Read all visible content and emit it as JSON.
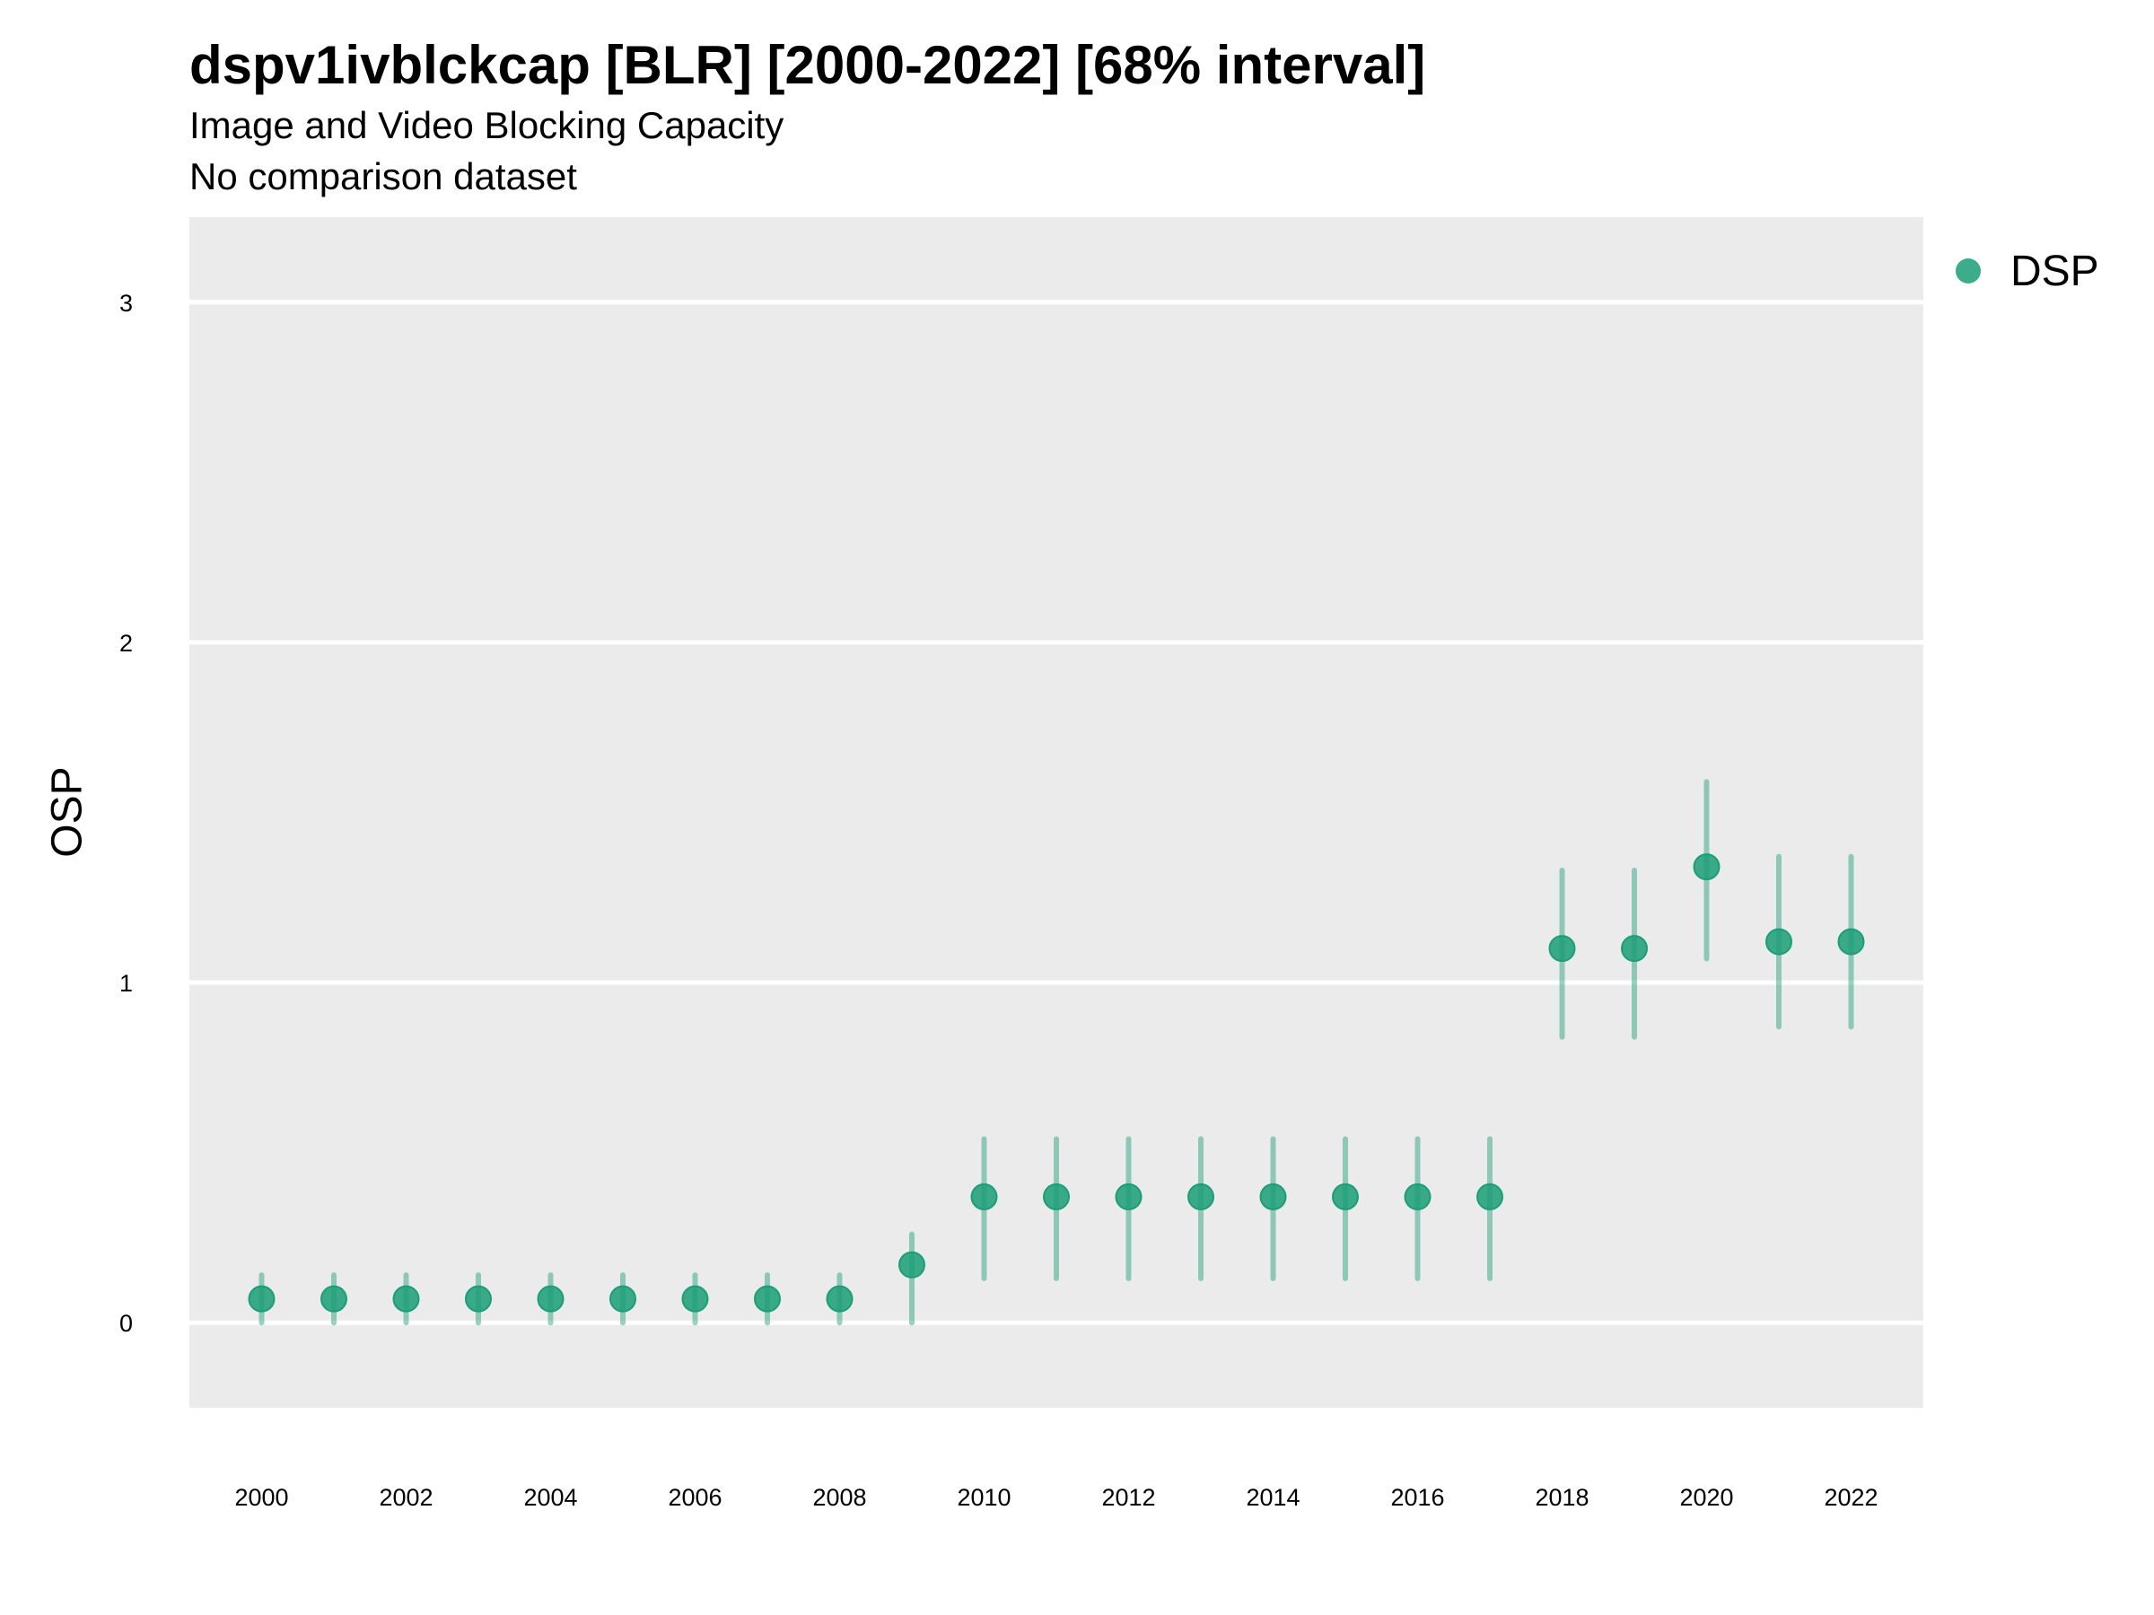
{
  "chart_data": {
    "type": "scatter",
    "title": "dspv1ivblckcap [BLR] [2000-2022] [68% interval]",
    "subtitle": "Image and Video Blocking Capacity",
    "caption": "No comparison dataset",
    "xlabel": "",
    "ylabel": "OSP",
    "ylim": [
      -0.25,
      3.25
    ],
    "xlim": [
      1999,
      2023
    ],
    "y_ticks": [
      0,
      1,
      2,
      3
    ],
    "x_tick_labels": [
      "2000",
      "2002",
      "2004",
      "2006",
      "2008",
      "2010",
      "2012",
      "2014",
      "2016",
      "2018",
      "2020",
      "2022"
    ],
    "legend": {
      "position": "top-right",
      "entries": [
        "DSP"
      ]
    },
    "color": "#1b9e77",
    "series": [
      {
        "name": "DSP",
        "x": [
          2000,
          2001,
          2002,
          2003,
          2004,
          2005,
          2006,
          2007,
          2008,
          2009,
          2010,
          2011,
          2012,
          2013,
          2014,
          2015,
          2016,
          2017,
          2018,
          2019,
          2020,
          2021,
          2022
        ],
        "y": [
          0.07,
          0.07,
          0.07,
          0.07,
          0.07,
          0.07,
          0.07,
          0.07,
          0.07,
          0.17,
          0.37,
          0.37,
          0.37,
          0.37,
          0.37,
          0.37,
          0.37,
          0.37,
          1.1,
          1.1,
          1.34,
          1.12,
          1.12
        ],
        "lower": [
          0.0,
          0.0,
          0.0,
          0.0,
          0.0,
          0.0,
          0.0,
          0.0,
          0.0,
          0.0,
          0.13,
          0.13,
          0.13,
          0.13,
          0.13,
          0.13,
          0.13,
          0.13,
          0.84,
          0.84,
          1.07,
          0.87,
          0.87
        ],
        "upper": [
          0.14,
          0.14,
          0.14,
          0.14,
          0.14,
          0.14,
          0.14,
          0.14,
          0.14,
          0.26,
          0.54,
          0.54,
          0.54,
          0.54,
          0.54,
          0.54,
          0.54,
          0.54,
          1.33,
          1.33,
          1.59,
          1.37,
          1.37
        ]
      }
    ]
  }
}
